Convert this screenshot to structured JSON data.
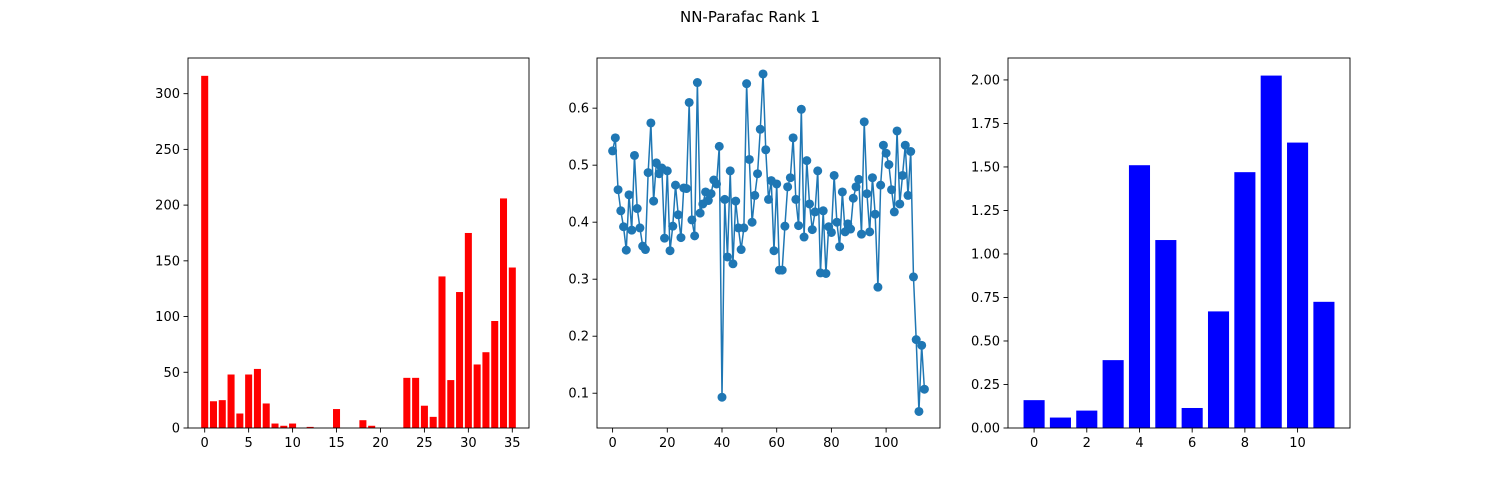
{
  "figure": {
    "title": "NN-Parafac Rank 1"
  },
  "chart_data": [
    {
      "type": "bar",
      "color": "#ff0000",
      "x": [
        0,
        1,
        2,
        3,
        4,
        5,
        6,
        7,
        8,
        9,
        10,
        11,
        12,
        13,
        14,
        15,
        16,
        17,
        18,
        19,
        20,
        21,
        22,
        23,
        24,
        25,
        26,
        27,
        28,
        29,
        30,
        31,
        32,
        33,
        34,
        35
      ],
      "values": [
        316,
        24,
        25,
        48,
        13,
        48,
        53,
        22,
        4,
        2,
        4,
        0,
        1,
        0,
        0,
        17,
        0,
        0,
        7,
        2,
        0,
        0,
        0,
        45,
        45,
        20,
        10,
        136,
        43,
        122,
        175,
        57,
        68,
        96,
        206,
        144
      ],
      "xlim": [
        -1.9,
        36.9
      ],
      "ylim": [
        0,
        332
      ],
      "xticks": [
        0,
        5,
        10,
        15,
        20,
        25,
        30,
        35
      ],
      "yticks": [
        0,
        50,
        100,
        150,
        200,
        250,
        300
      ],
      "xtick_labels": [
        "0",
        "5",
        "10",
        "15",
        "20",
        "25",
        "30",
        "35"
      ],
      "ytick_labels": [
        "0",
        "50",
        "100",
        "150",
        "200",
        "250",
        "300"
      ]
    },
    {
      "type": "line",
      "color": "#1f77b4",
      "marker": "circle",
      "x": [
        0,
        1,
        2,
        3,
        4,
        5,
        6,
        7,
        8,
        9,
        10,
        11,
        12,
        13,
        14,
        15,
        16,
        17,
        18,
        19,
        20,
        21,
        22,
        23,
        24,
        25,
        26,
        27,
        28,
        29,
        30,
        31,
        32,
        33,
        34,
        35,
        36,
        37,
        38,
        39,
        40,
        41,
        42,
        43,
        44,
        45,
        46,
        47,
        48,
        49,
        50,
        51,
        52,
        53,
        54,
        55,
        56,
        57,
        58,
        59,
        60,
        61,
        62,
        63,
        64,
        65,
        66,
        67,
        68,
        69,
        70,
        71,
        72,
        73,
        74,
        75,
        76,
        77,
        78,
        79,
        80,
        81,
        82,
        83,
        84,
        85,
        86,
        87,
        88,
        89,
        90,
        91,
        92,
        93,
        94,
        95,
        96,
        97,
        98,
        99,
        100,
        101,
        102,
        103,
        104,
        105,
        106,
        107,
        108,
        109,
        110,
        111,
        112,
        113,
        114
      ],
      "values": [
        0.525,
        0.548,
        0.457,
        0.42,
        0.392,
        0.351,
        0.448,
        0.386,
        0.517,
        0.424,
        0.39,
        0.358,
        0.352,
        0.487,
        0.574,
        0.437,
        0.504,
        0.485,
        0.495,
        0.372,
        0.49,
        0.35,
        0.393,
        0.465,
        0.413,
        0.373,
        0.46,
        0.459,
        0.61,
        0.404,
        0.376,
        0.645,
        0.416,
        0.432,
        0.453,
        0.438,
        0.45,
        0.474,
        0.467,
        0.533,
        0.093,
        0.44,
        0.339,
        0.49,
        0.327,
        0.437,
        0.39,
        0.352,
        0.39,
        0.643,
        0.51,
        0.4,
        0.447,
        0.485,
        0.563,
        0.66,
        0.527,
        0.44,
        0.473,
        0.35,
        0.467,
        0.316,
        0.316,
        0.393,
        0.462,
        0.478,
        0.548,
        0.44,
        0.394,
        0.598,
        0.374,
        0.508,
        0.432,
        0.387,
        0.418,
        0.49,
        0.311,
        0.42,
        0.31,
        0.392,
        0.382,
        0.482,
        0.4,
        0.357,
        0.453,
        0.383,
        0.397,
        0.388,
        0.442,
        0.462,
        0.475,
        0.379,
        0.576,
        0.45,
        0.383,
        0.478,
        0.414,
        0.286,
        0.465,
        0.535,
        0.521,
        0.501,
        0.457,
        0.418,
        0.56,
        0.432,
        0.482,
        0.535,
        0.447,
        0.524,
        0.304,
        0.194,
        0.068,
        0.184,
        0.107
      ],
      "xlim": [
        -5.7,
        119.7
      ],
      "ylim": [
        0.039,
        0.688
      ],
      "xticks": [
        0,
        20,
        40,
        60,
        80,
        100
      ],
      "yticks": [
        0.1,
        0.2,
        0.3,
        0.4,
        0.5,
        0.6
      ],
      "xtick_labels": [
        "0",
        "20",
        "40",
        "60",
        "80",
        "100"
      ],
      "ytick_labels": [
        "0.1",
        "0.2",
        "0.3",
        "0.4",
        "0.5",
        "0.6"
      ]
    },
    {
      "type": "bar",
      "color": "#0000ff",
      "x": [
        0,
        1,
        2,
        3,
        4,
        5,
        6,
        7,
        8,
        9,
        10,
        11
      ],
      "values": [
        0.16,
        0.06,
        0.1,
        0.39,
        1.51,
        1.08,
        0.115,
        0.67,
        1.47,
        2.025,
        1.64,
        0.725
      ],
      "xlim": [
        -0.99,
        11.99
      ],
      "ylim": [
        0,
        2.126
      ],
      "xticks": [
        0,
        2,
        4,
        6,
        8,
        10
      ],
      "yticks": [
        0,
        0.25,
        0.5,
        0.75,
        1.0,
        1.25,
        1.5,
        1.75,
        2.0
      ],
      "xtick_labels": [
        "0",
        "2",
        "4",
        "6",
        "8",
        "10"
      ],
      "ytick_labels": [
        "0.00",
        "0.25",
        "0.50",
        "0.75",
        "1.00",
        "1.25",
        "1.50",
        "1.75",
        "2.00"
      ]
    }
  ]
}
